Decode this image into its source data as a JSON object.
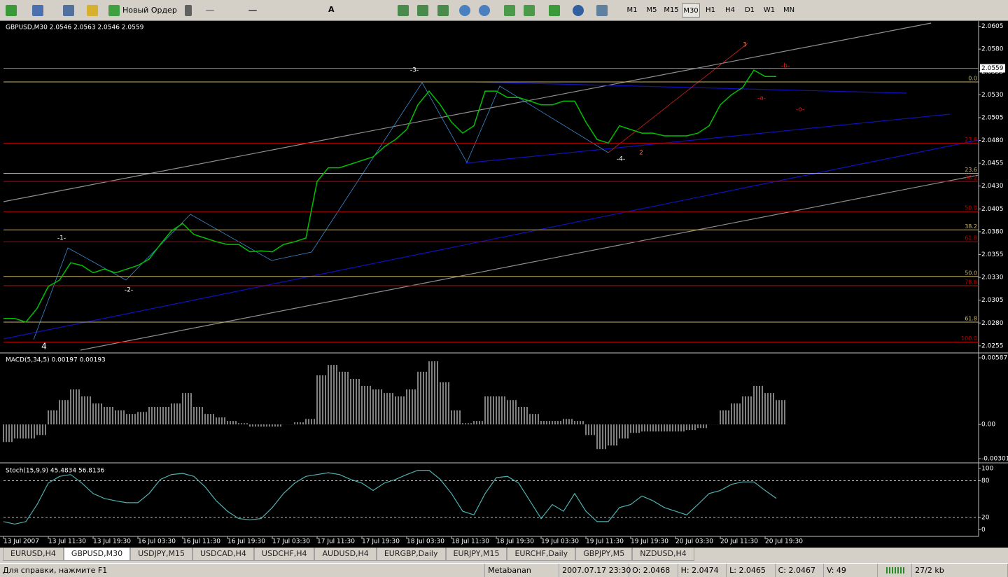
{
  "toolbar": {
    "new_order": "Новый Ордер",
    "text_tool": "A",
    "timeframes": [
      "M1",
      "M5",
      "M15",
      "M30",
      "H1",
      "H4",
      "D1",
      "W1",
      "MN"
    ],
    "active_timeframe": 3
  },
  "chart": {
    "type": "line",
    "header": "GBPUSD,M30  2.0546 2.0563 2.0546 2.0559",
    "color": "#00c000",
    "ylim": [
      2.0248,
      2.061
    ],
    "yticks": [
      {
        "value": 2.0605,
        "label": "2.0605"
      },
      {
        "value": 2.058,
        "label": "2.0580"
      },
      {
        "value": 2.0555,
        "label": "2.0555"
      },
      {
        "value": 2.053,
        "label": "2.0530"
      },
      {
        "value": 2.0505,
        "label": "2.0505"
      },
      {
        "value": 2.048,
        "label": "2.0480"
      },
      {
        "value": 2.0455,
        "label": "2.0455"
      },
      {
        "value": 2.043,
        "label": "2.0430"
      },
      {
        "value": 2.0405,
        "label": "2.0405"
      },
      {
        "value": 2.038,
        "label": "2.0380"
      },
      {
        "value": 2.0355,
        "label": "2.0355"
      },
      {
        "value": 2.033,
        "label": "2.0330"
      },
      {
        "value": 2.0305,
        "label": "2.0305"
      },
      {
        "value": 2.028,
        "label": "2.0280"
      },
      {
        "value": 2.0255,
        "label": "2.0255"
      }
    ],
    "current_price": {
      "value": 2.0559,
      "label": "2.0559"
    },
    "closes": [
      2.0285,
      2.0285,
      2.0281,
      2.0296,
      2.032,
      2.0327,
      2.0346,
      2.0343,
      2.0335,
      2.0339,
      2.0335,
      2.0339,
      2.0343,
      2.035,
      2.0366,
      2.0381,
      2.0389,
      2.0377,
      2.0373,
      2.0369,
      2.0366,
      2.0366,
      2.0358,
      2.0359,
      2.0358,
      2.0366,
      2.0369,
      2.0373,
      2.0435,
      2.045,
      2.045,
      2.0454,
      2.0458,
      2.0462,
      2.0473,
      2.0481,
      2.0492,
      2.0519,
      2.0534,
      2.0519,
      2.05,
      2.0488,
      2.0496,
      2.0534,
      2.0534,
      2.0527,
      2.0527,
      2.0523,
      2.0519,
      2.0519,
      2.0523,
      2.0523,
      2.05,
      2.0481,
      2.0477,
      2.0496,
      2.0492,
      2.0488,
      2.0488,
      2.0485,
      2.0485,
      2.0485,
      2.0488,
      2.0496,
      2.0519,
      2.053,
      2.0538,
      2.0557,
      2.055,
      2.055
    ],
    "time_labels": [
      "13 Jul 2007",
      "13 Jul 11:30",
      "13 Jul 19:30",
      "16 Jul 03:30",
      "16 Jul 11:30",
      "16 Jul 19:30",
      "17 Jul 03:30",
      "17 Jul 11:30",
      "17 Jul 19:30",
      "18 Jul 03:30",
      "18 Jul 11:30",
      "18 Jul 19:30",
      "19 Jul 03:30",
      "19 Jul 11:30",
      "19 Jul 19:30",
      "20 Jul 03:30",
      "20 Jul 11:30",
      "20 Jul 19:30"
    ],
    "fib_levels": [
      {
        "value": 2.0544,
        "label": "0.0",
        "color": "#c8b46e"
      },
      {
        "value": 2.0477,
        "label": "23.6",
        "color": "#c00000"
      },
      {
        "value": 2.0444,
        "label": "23.6",
        "color": "#c8b46e"
      },
      {
        "value": 2.0435,
        "label": "38.2",
        "color": "#c00000"
      },
      {
        "value": 2.0402,
        "label": "50.0",
        "color": "#c00000"
      },
      {
        "value": 2.0382,
        "label": "38.2",
        "color": "#c8b46e"
      },
      {
        "value": 2.0369,
        "label": "61.8",
        "color": "#c00000"
      },
      {
        "value": 2.0331,
        "label": "50.0",
        "color": "#c8b46e"
      },
      {
        "value": 2.0321,
        "label": "78.6",
        "color": "#c00000"
      },
      {
        "value": 2.0281,
        "label": "61.8",
        "color": "#c8b46e"
      },
      {
        "value": 2.0259,
        "label": "100.0",
        "color": "#c00000"
      }
    ],
    "wave_labels": [
      "-1-",
      "-2-",
      "-3-",
      "-4-",
      "4",
      "2",
      "3",
      "-a-",
      "-b-",
      "-o-"
    ]
  },
  "macd": {
    "type": "bar",
    "header": "MACD(5,34,5) 0.00197 0.00193",
    "color": "#ffffff",
    "ylim": [
      -0.00332,
      0.00624
    ],
    "yticks": [
      0.00587,
      {
        "value": 0,
        "label": "0.00"
      },
      -0.00301
    ],
    "values": [
      -0.00155,
      -0.00124,
      -0.00124,
      -0.00093,
      0.00124,
      0.00216,
      0.00309,
      0.00247,
      0.00185,
      0.00155,
      0.00124,
      0.00093,
      0.00111,
      0.00155,
      0.00155,
      0.00185,
      0.00278,
      0.00155,
      0.00093,
      0.00062,
      0.00031,
      0.00012,
      -0.00019,
      -0.00019,
      -0.00019,
      0,
      0.00019,
      0.00049,
      0.00433,
      0.00525,
      0.00464,
      0.00402,
      0.0034,
      0.00309,
      0.00278,
      0.00247,
      0.00309,
      0.00464,
      0.00556,
      0.00371,
      0.00124,
      0.00012,
      0.00031,
      0.00247,
      0.00247,
      0.00216,
      0.00155,
      0.00093,
      0.00031,
      0.00031,
      0.00049,
      0.00031,
      -0.00093,
      -0.00216,
      -0.00185,
      -0.00124,
      -0.00074,
      -0.00062,
      -0.00062,
      -0.00062,
      -0.00062,
      -0.00049,
      -0.00031,
      0,
      0.00124,
      0.00185,
      0.00247,
      0.0034,
      0.00278,
      0.00216
    ]
  },
  "stoch": {
    "type": "line",
    "header": "Stoch(15,9,9) 45.4834 56.8136",
    "color": "#4fb0b0",
    "ylim": [
      -10,
      108
    ],
    "yticks": [
      100,
      80,
      20,
      0
    ],
    "levels": [
      80,
      20
    ],
    "values": [
      13,
      9,
      13,
      41,
      76,
      87,
      90,
      76,
      59,
      51,
      47,
      44,
      44,
      59,
      82,
      90,
      92,
      87,
      70,
      47,
      30,
      18,
      16,
      18,
      36,
      59,
      76,
      87,
      90,
      93,
      90,
      82,
      76,
      64,
      76,
      82,
      90,
      97,
      97,
      82,
      59,
      30,
      24,
      59,
      85,
      87,
      76,
      47,
      18,
      41,
      30,
      59,
      30,
      13,
      13,
      36,
      41,
      55,
      47,
      36,
      30,
      24,
      41,
      59,
      64,
      74,
      78,
      78,
      64,
      51
    ]
  },
  "tabs": [
    "EURUSD,H4",
    "GBPUSD,M30",
    "USDJPY,M15",
    "USDCAD,H4",
    "USDCHF,H4",
    "AUDUSD,H4",
    "EURGBP,Daily",
    "EURJPY,M15",
    "EURCHF,Daily",
    "GBPJPY,M5",
    "NZDUSD,H4"
  ],
  "active_tab": 1,
  "status": {
    "help": "Для справки, нажмите F1",
    "profile": "Metabanan",
    "time": "2007.07.17 23:30",
    "open": "O: 2.0468",
    "high": "H: 2.0474",
    "low": "L: 2.0465",
    "close": "C: 2.0467",
    "volume": "V: 49",
    "traffic": "27/2 kb"
  }
}
